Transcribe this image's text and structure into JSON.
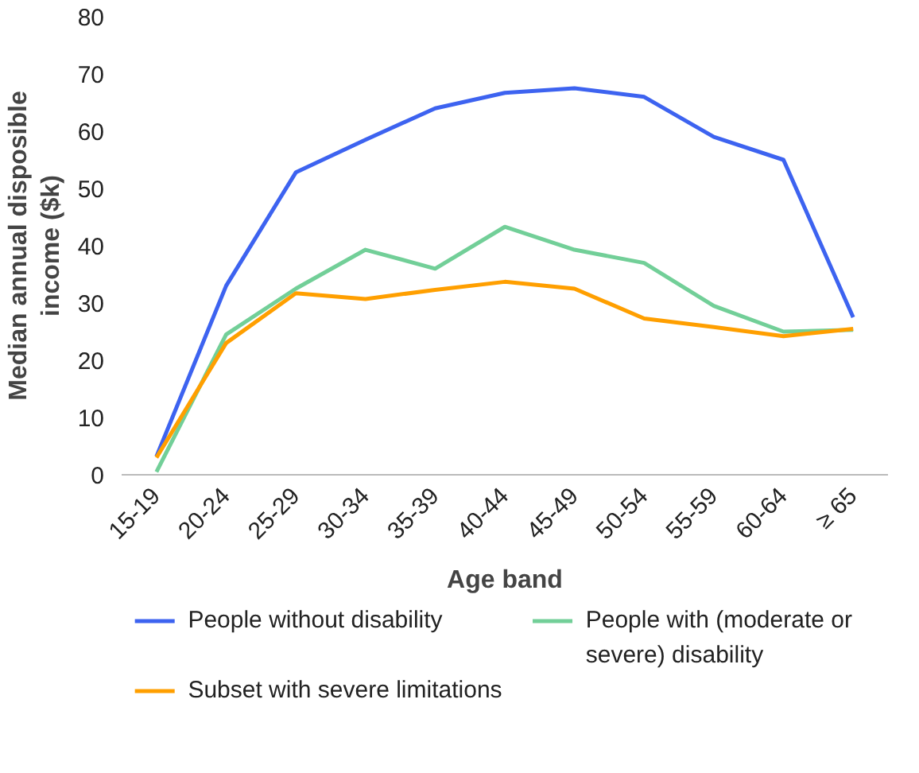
{
  "chart_data": {
    "type": "line",
    "xlabel": "Age band",
    "ylabel": "Median annual disposible income ($k)",
    "categories": [
      "15-19",
      "20-24",
      "25-29",
      "30-34",
      "35-39",
      "40-44",
      "45-49",
      "50-54",
      "55-59",
      "60-64",
      "≥ 65"
    ],
    "series": [
      {
        "name": "People without disability",
        "color": "#3d63f0",
        "values": [
          3.2,
          33,
          52.8,
          58.5,
          64,
          66.7,
          67.5,
          66,
          59,
          55,
          27.5
        ]
      },
      {
        "name": "People with (moderate or severe) disability",
        "color": "#72cf98",
        "values": [
          0.5,
          24.5,
          32.5,
          39.3,
          36,
          43.3,
          39.3,
          37,
          29.5,
          25,
          25.3
        ]
      },
      {
        "name": "Subset with severe limitations",
        "color": "#ff9f00",
        "values": [
          3,
          23,
          31.7,
          30.7,
          32.3,
          33.7,
          32.5,
          27.3,
          25.8,
          24.2,
          25.5
        ]
      }
    ],
    "ylim": [
      0,
      80
    ],
    "yticks": [
      0,
      10,
      20,
      30,
      40,
      50,
      60,
      70,
      80
    ],
    "grid": false,
    "legend": "bottom",
    "marker": "none",
    "line_style": "solid"
  }
}
